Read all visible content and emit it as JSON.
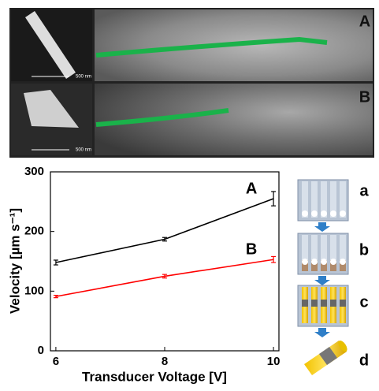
{
  "panels": {
    "labels": [
      "A",
      "B"
    ],
    "scale_bars": [
      "500 nm",
      "500 nm"
    ]
  },
  "schematic": {
    "labels": [
      "a",
      "b",
      "c",
      "d"
    ]
  },
  "chart_data": {
    "type": "line",
    "x_label": "Transducer Voltage [V]",
    "y_label": "Velocity [µm s⁻¹]",
    "x": [
      6,
      8,
      10
    ],
    "series": [
      {
        "name": "A",
        "color": "#000000",
        "values": [
          148,
          187,
          255
        ],
        "errors": [
          4,
          3,
          12
        ]
      },
      {
        "name": "B",
        "color": "#ff0000",
        "values": [
          91,
          125,
          153
        ],
        "errors": [
          2,
          3,
          5
        ]
      }
    ],
    "xlim": [
      5.9,
      10.1
    ],
    "ylim": [
      0,
      300
    ],
    "xticks": [
      6,
      8,
      10
    ],
    "yticks": [
      0,
      100,
      200,
      300
    ]
  }
}
